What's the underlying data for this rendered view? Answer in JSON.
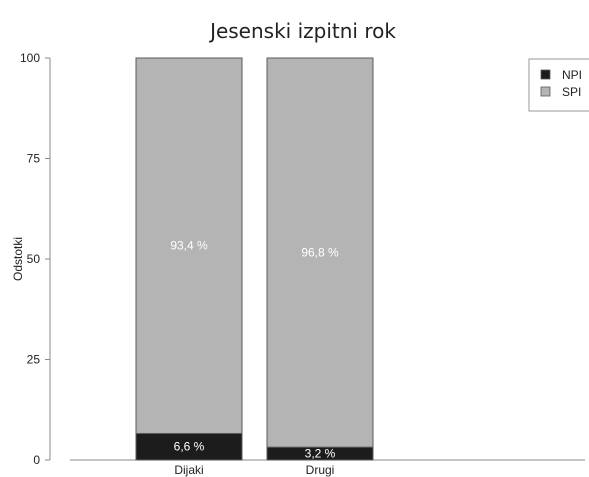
{
  "colors": {
    "NPI": "#1c1c1c",
    "SPI": "#b4b4b4",
    "bar_outline": "#5a5a5a",
    "axis": "#8a8a8a",
    "label_on_dark": "#ffffff",
    "label_on_light": "#ffffff"
  },
  "chart_data": {
    "type": "bar",
    "stacked": true,
    "title": "Jesenski izpitni rok",
    "xlabel": "",
    "ylabel": "Odstotki",
    "ylim": [
      0,
      100
    ],
    "yticks": [
      "0",
      "25",
      "50",
      "75",
      "100"
    ],
    "categories": [
      "Dijaki",
      "Drugi"
    ],
    "series": [
      {
        "name": "NPI",
        "values": [
          6.6,
          3.2
        ],
        "labels": [
          "6,6 %",
          "3,2 %"
        ]
      },
      {
        "name": "SPI",
        "values": [
          93.4,
          96.8
        ],
        "labels": [
          "93,4 %",
          "96,8 %"
        ]
      }
    ],
    "legend": {
      "position": "top-right",
      "entries": [
        "NPI",
        "SPI"
      ]
    },
    "grid": false
  }
}
